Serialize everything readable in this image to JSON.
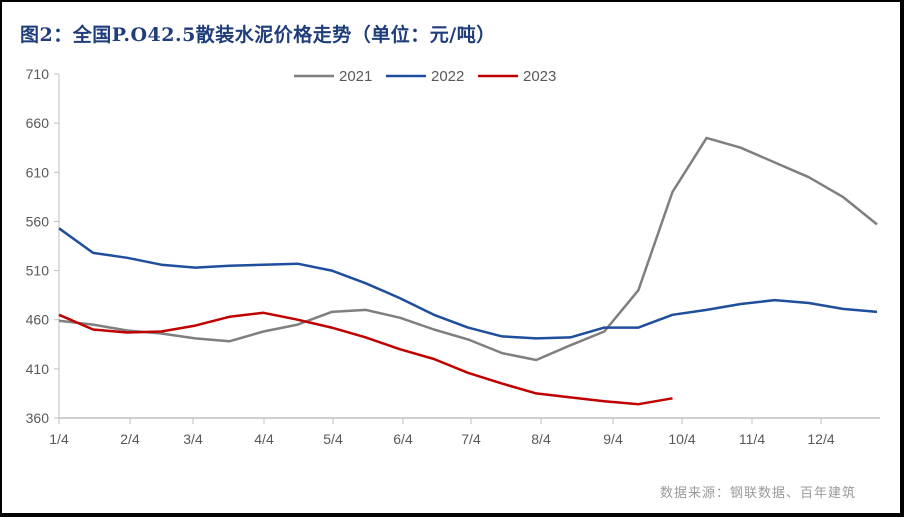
{
  "title": "图2：全国P.O42.5散装水泥价格走势（单位：元/吨）",
  "source": "数据来源：钢联数据、百年建筑",
  "colors": {
    "2021": "#7f7f7f",
    "2022": "#1f4e9c",
    "2023": "#c00000",
    "title": "#1f3d7a"
  },
  "chart_data": {
    "type": "line",
    "title": "全国P.O42.5散装水泥价格走势（单位：元/吨）",
    "xlabel": "",
    "ylabel": "元/吨",
    "ylim": [
      360,
      710
    ],
    "yticks": [
      360,
      410,
      460,
      510,
      560,
      610,
      660,
      710
    ],
    "x_tick_labels": [
      "1/4",
      "2/4",
      "3/4",
      "4/4",
      "5/4",
      "6/4",
      "7/4",
      "8/4",
      "9/4",
      "10/4",
      "11/4",
      "12/4"
    ],
    "grid": false,
    "legend_position": "top",
    "x": [
      "1/4",
      "1/18",
      "2/4",
      "2/18",
      "3/4",
      "3/18",
      "4/4",
      "4/18",
      "5/4",
      "5/18",
      "6/4",
      "6/18",
      "7/4",
      "7/18",
      "8/4",
      "8/18",
      "9/4",
      "9/18",
      "10/4",
      "10/18",
      "11/4",
      "11/18",
      "12/4",
      "12/18",
      "12/31"
    ],
    "series": [
      {
        "name": "2021",
        "values": [
          459,
          455,
          449,
          446,
          441,
          438,
          448,
          455,
          468,
          470,
          462,
          450,
          440,
          426,
          419,
          434,
          448,
          490,
          590,
          645,
          635,
          620,
          605,
          585,
          557
        ]
      },
      {
        "name": "2022",
        "values": [
          553,
          528,
          523,
          516,
          513,
          515,
          516,
          517,
          510,
          497,
          482,
          465,
          452,
          443,
          441,
          442,
          452,
          452,
          465,
          470,
          476,
          480,
          477,
          471,
          468
        ]
      },
      {
        "name": "2023",
        "values": [
          465,
          450,
          447,
          448,
          454,
          463,
          467,
          460,
          452,
          442,
          430,
          420,
          406,
          395,
          385,
          381,
          377,
          374,
          380,
          null,
          null,
          null,
          null,
          null,
          null
        ]
      }
    ]
  },
  "legend": [
    {
      "label": "2021"
    },
    {
      "label": "2022"
    },
    {
      "label": "2023"
    }
  ]
}
